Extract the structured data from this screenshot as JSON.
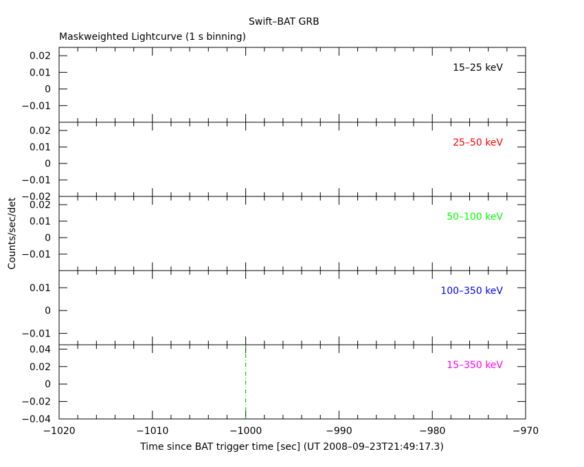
{
  "header": {
    "title": "Swift–BAT GRB",
    "subtitle": "Maskweighted Lightcurve (1 s binning)"
  },
  "axes": {
    "xlabel": "Time since BAT trigger time [sec] (UT 2008–09–23T21:49:17.3)",
    "ylabel": "Counts/sec/det"
  },
  "colors": {
    "axis": "#000000",
    "band1": "#000000",
    "band2": "#ff0000",
    "band3": "#00ff00",
    "band4": "#0000ff",
    "band5": "#ff00ff",
    "trigger_line": "#00aa00"
  },
  "chart_data": {
    "type": "line",
    "xlim": [
      -1020,
      -970
    ],
    "xticks": [
      -1020,
      -1010,
      -1000,
      -990,
      -980,
      -970
    ],
    "xtick_labels": [
      "−1020",
      "−1010",
      "−1000",
      "−990",
      "−980",
      "−970"
    ],
    "trigger_marker_x": -1000,
    "panels": [
      {
        "label": "15–25 keV",
        "color": "#000000",
        "ylim": [
          -0.02,
          0.025
        ],
        "yticks": [
          0.02,
          0.01,
          0,
          -0.01
        ],
        "ytick_labels": [
          "0.02",
          "0.01",
          "0",
          "−0.01"
        ],
        "values": []
      },
      {
        "label": "25–50 keV",
        "color": "#ff0000",
        "ylim": [
          -0.02,
          0.025
        ],
        "yticks": [
          0.02,
          0.01,
          0,
          -0.01,
          -0.02
        ],
        "ytick_labels": [
          "0.02",
          "0.01",
          "0",
          "−0.01",
          "−0.02"
        ],
        "values": []
      },
      {
        "label": "50–100 keV",
        "color": "#00ff00",
        "ylim": [
          -0.02,
          0.025
        ],
        "yticks": [
          0.02,
          0.01,
          0,
          -0.01
        ],
        "ytick_labels": [
          "0.02",
          "0.01",
          "0",
          "−0.01"
        ],
        "values": []
      },
      {
        "label": "100–350 keV",
        "color": "#0000ff",
        "ylim": [
          -0.015,
          0.0175
        ],
        "yticks": [
          0.01,
          0,
          -0.01
        ],
        "ytick_labels": [
          "0.01",
          "0",
          "−0.01"
        ],
        "values": []
      },
      {
        "label": "15–350 keV",
        "color": "#ff00ff",
        "ylim": [
          -0.04,
          0.045
        ],
        "yticks": [
          0.04,
          0.02,
          0,
          -0.02,
          -0.04
        ],
        "ytick_labels": [
          "0.04",
          "0.02",
          "0",
          "−0.02",
          "−0.04"
        ],
        "values": []
      }
    ]
  }
}
